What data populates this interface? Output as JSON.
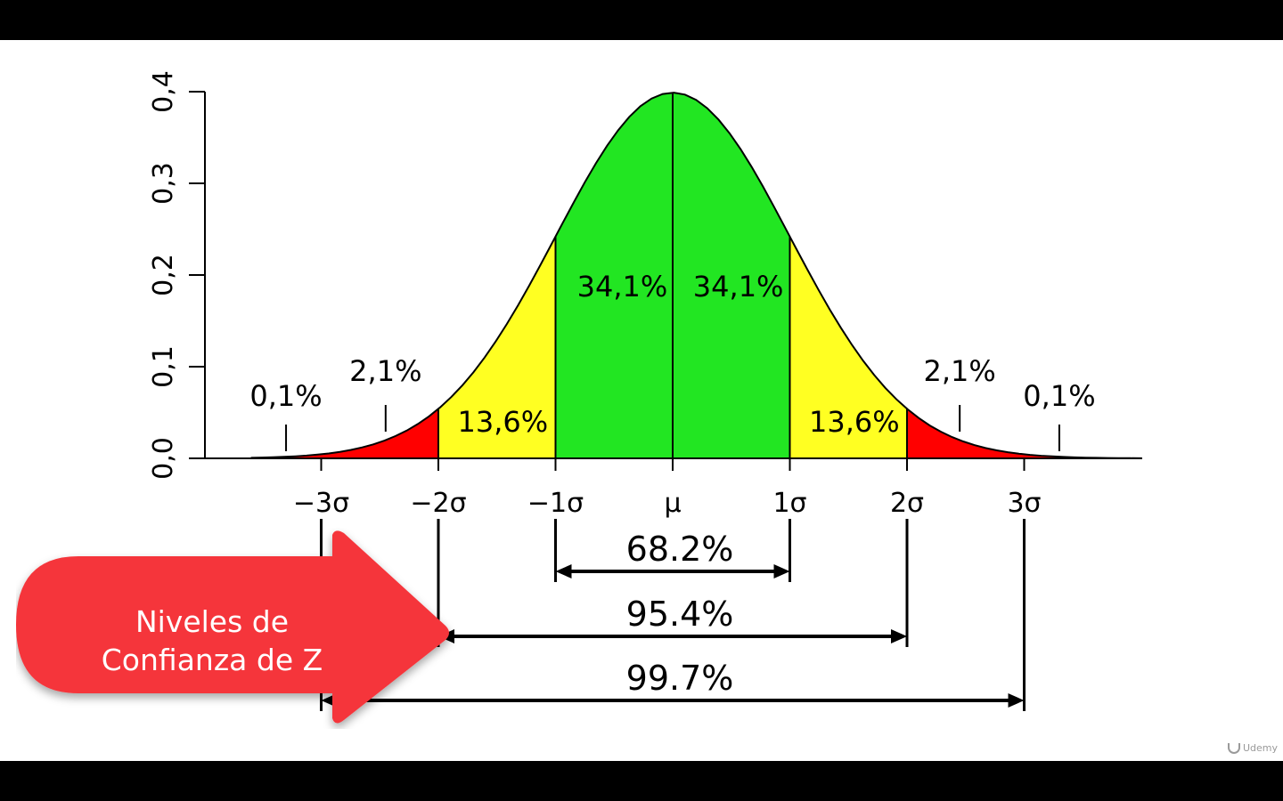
{
  "chart_data": {
    "type": "area",
    "title": "",
    "xlabel": "",
    "ylabel": "",
    "xlim": [
      -4.5,
      4
    ],
    "ylim": [
      0,
      0.4
    ],
    "yticks": [
      {
        "value": 0.0,
        "label": "0,0"
      },
      {
        "value": 0.1,
        "label": "0,1"
      },
      {
        "value": 0.2,
        "label": "0,2"
      },
      {
        "value": 0.3,
        "label": "0,3"
      },
      {
        "value": 0.4,
        "label": "0,4"
      }
    ],
    "xticks": [
      {
        "value": -3,
        "label": "−3σ"
      },
      {
        "value": -2,
        "label": "−2σ"
      },
      {
        "value": -1,
        "label": "−1σ"
      },
      {
        "value": 0,
        "label": "μ"
      },
      {
        "value": 1,
        "label": "1σ"
      },
      {
        "value": 2,
        "label": "2σ"
      },
      {
        "value": 3,
        "label": "3σ"
      }
    ],
    "regions": [
      {
        "from": -3.3,
        "to": -3,
        "color": "#FF0000",
        "label": "0,1%",
        "label_x": -3.3,
        "callout": true
      },
      {
        "from": -3,
        "to": -2,
        "color": "#FF0000",
        "label": "2,1%",
        "label_x": -2.45,
        "callout": true
      },
      {
        "from": -2,
        "to": -1,
        "color": "#FFFF22",
        "label": "13,6%",
        "label_x": -1.45,
        "callout": false
      },
      {
        "from": -1,
        "to": 0,
        "color": "#22E622",
        "label": "34,1%",
        "label_x": -0.43,
        "callout": false
      },
      {
        "from": 0,
        "to": 1,
        "color": "#22E622",
        "label": "34,1%",
        "label_x": 0.56,
        "callout": false
      },
      {
        "from": 1,
        "to": 2,
        "color": "#FFFF22",
        "label": "13,6%",
        "label_x": 1.55,
        "callout": false
      },
      {
        "from": 2,
        "to": 3,
        "color": "#FF0000",
        "label": "2,1%",
        "label_x": 2.45,
        "callout": true
      },
      {
        "from": 3,
        "to": 3.3,
        "color": "#FF0000",
        "label": "0,1%",
        "label_x": 3.3,
        "callout": true
      }
    ],
    "ranges": [
      {
        "from": -1,
        "to": 1,
        "label": "68.2%"
      },
      {
        "from": -2,
        "to": 2,
        "label": "95.4%"
      },
      {
        "from": -3,
        "to": 3,
        "label": "99.7%"
      }
    ]
  },
  "callout": {
    "line1": "Niveles de",
    "line2": "Confianza de Z",
    "color": "#F5363B"
  },
  "watermark": "Udemy"
}
